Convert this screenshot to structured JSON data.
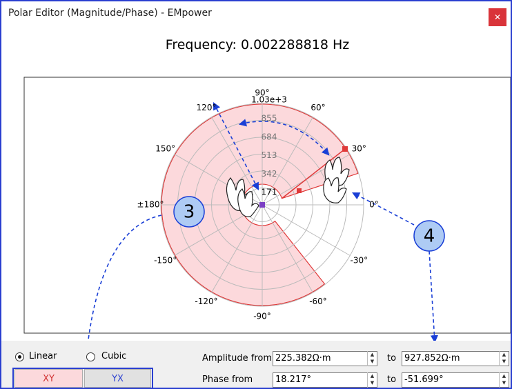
{
  "window": {
    "title": "Polar Editor (Magnitude/Phase) - EMpower"
  },
  "header": {
    "frequency": "Frequency: 0.002288818 Hz"
  },
  "polar": {
    "angle_labels": [
      "90°",
      "60°",
      "30°",
      "0°",
      "-30°",
      "-60°",
      "-90°",
      "-120°",
      "-150°",
      "±180°",
      "150°",
      "120°"
    ],
    "radial_labels": [
      "171",
      "342",
      "513",
      "684",
      "855",
      "1.03e+3"
    ]
  },
  "callouts": [
    "3",
    "4"
  ],
  "interpolation": {
    "options": [
      "Linear",
      "Cubic"
    ]
  },
  "axes_buttons": [
    "XY",
    "YX"
  ],
  "amplitude": {
    "label": "Amplitude from",
    "from": "225.382Ω·m",
    "to_label": "to",
    "to": "927.852Ω·m"
  },
  "phase": {
    "label": "Phase from",
    "from": "18.217°",
    "to_label": "to",
    "to": "-51.699°"
  }
}
